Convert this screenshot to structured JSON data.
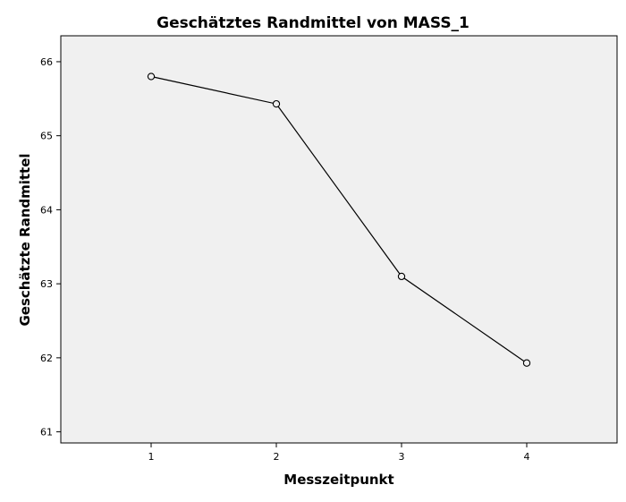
{
  "chart_data": {
    "type": "line",
    "title": "Geschätztes Randmittel von MASS_1",
    "xlabel": "Messzeitpunkt",
    "ylabel": "Geschätzte Randmittel",
    "categories": [
      "1",
      "2",
      "3",
      "4"
    ],
    "values": [
      65.8,
      65.43,
      63.1,
      61.93
    ],
    "ylim": [
      60.85,
      66.35
    ],
    "yticks": [
      "61",
      "62",
      "63",
      "64",
      "65",
      "66"
    ],
    "grid": false,
    "legend": "none",
    "colors": {
      "plot_background": "#f0f0f0",
      "line": "#000000",
      "marker_fill": "#f0f0f0"
    }
  }
}
